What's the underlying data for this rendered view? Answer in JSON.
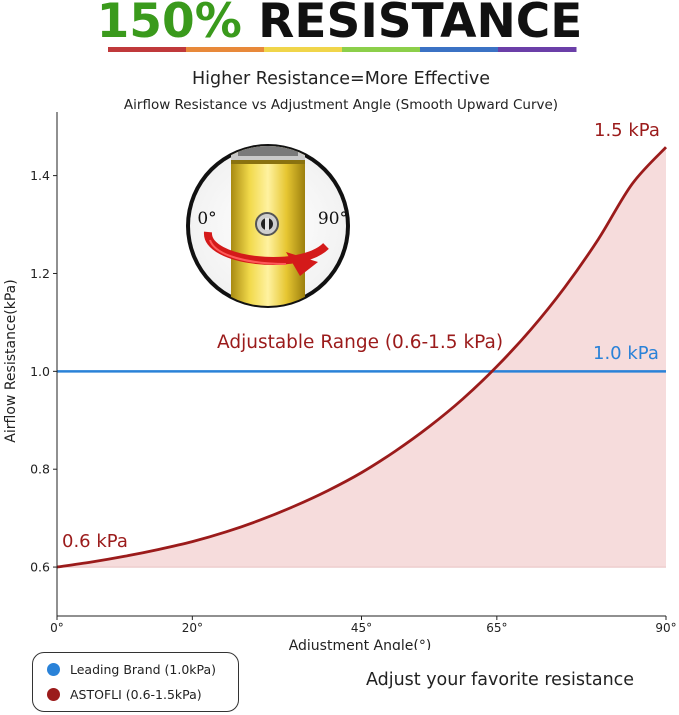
{
  "headline": {
    "percent": "150%",
    "word": " RESISTANCE"
  },
  "rainbow_colors": [
    "#c0393b",
    "#e8893a",
    "#f0d54a",
    "#8ccf4a",
    "#3b72c4",
    "#6b3fa8"
  ],
  "chart_data": {
    "type": "area",
    "title": "Higher Resistance=More Effective",
    "subtitle": "Airflow Resistance vs Adjustment Angle (Smooth Upward Curve)",
    "xlabel": "Adjustment Angle(°)",
    "ylabel": "Airflow Resistance(kPa)",
    "xlim": [
      0,
      90
    ],
    "ylim": [
      0.5,
      1.53
    ],
    "x_ticks": [
      0,
      20,
      45,
      65,
      90
    ],
    "x_tick_labels": [
      "0°",
      "20°",
      "45°",
      "65°",
      "90°"
    ],
    "y_ticks": [
      0.6,
      0.8,
      1.0,
      1.2,
      1.4
    ],
    "y_tick_labels": [
      "0.6",
      "0.8",
      "1.0",
      "1.2",
      "1.4"
    ],
    "grid": false,
    "series": [
      {
        "name": "ASTOFLI (0.6-1.5kPa)",
        "color": "#9b1b1b",
        "fill": "#f6dcdc",
        "x": [
          0,
          5,
          10,
          15,
          20,
          25,
          30,
          35,
          40,
          45,
          50,
          55,
          60,
          65,
          70,
          75,
          80,
          85,
          90
        ],
        "y": [
          0.6,
          0.61,
          0.622,
          0.636,
          0.652,
          0.672,
          0.696,
          0.724,
          0.756,
          0.793,
          0.837,
          0.887,
          0.944,
          1.01,
          1.085,
          1.171,
          1.27,
          1.383,
          1.458
        ]
      },
      {
        "name": "Leading Brand (1.0kPa)",
        "color": "#2a82d8",
        "x": [
          0,
          90
        ],
        "y": [
          1.0,
          1.0
        ]
      }
    ],
    "annotations": {
      "min_label": "0.6 kPa",
      "max_label": "1.5 kPa",
      "brand_label": "1.0 kPa",
      "range_label": "Adjustable Range (0.6-1.5 kPa)",
      "knob_left": "0°",
      "knob_right": "90°"
    },
    "legend_placement": "bottom-left"
  },
  "legend": {
    "items": [
      {
        "label": "Leading Brand (1.0kPa)",
        "color": "#2a82d8"
      },
      {
        "label": "ASTOFLI (0.6-1.5kPa)",
        "color": "#9b1b1b"
      }
    ]
  },
  "tagline": "Adjust your favorite resistance"
}
